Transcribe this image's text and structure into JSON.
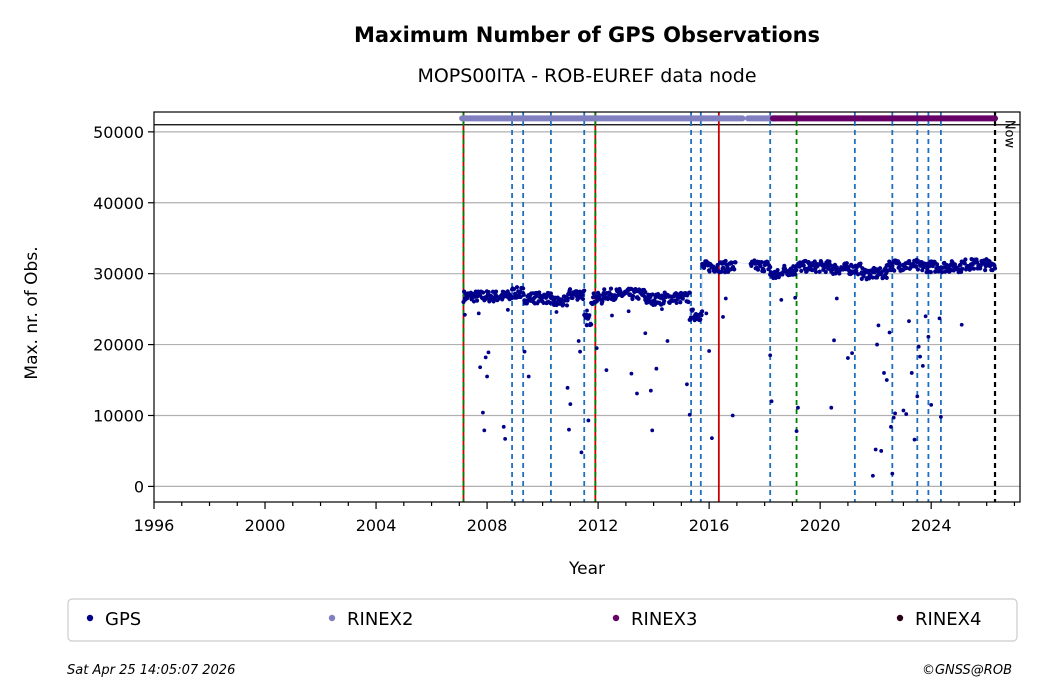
{
  "chart_data": {
    "type": "scatter",
    "title": "Maximum Number of GPS Observations",
    "subtitle": "MOPS00ITA - ROB-EUREF data node",
    "xlabel": "Year",
    "ylabel": "Max. nr. of Obs.",
    "xlim": [
      1996,
      2027.2
    ],
    "ylim": [
      -2200,
      52800
    ],
    "x_ticks": [
      1996,
      2000,
      2004,
      2008,
      2012,
      2016,
      2020,
      2024
    ],
    "y_ticks": [
      0,
      10000,
      20000,
      30000,
      40000,
      50000
    ],
    "y_tick_labels": [
      "0",
      "10000",
      "20000",
      "30000",
      "40000",
      "50000"
    ],
    "grid": "horizontal",
    "reference_line_y": 51000,
    "now_label": "Now",
    "now_year": 2026.32,
    "series": [
      {
        "name": "GPS",
        "color": "#00008b",
        "segments": [
          {
            "x0": 2007.15,
            "x1": 2008.9,
            "level": 26800
          },
          {
            "x0": 2008.9,
            "x1": 2009.3,
            "level": 27300
          },
          {
            "x0": 2009.3,
            "x1": 2010.3,
            "level": 26600
          },
          {
            "x0": 2010.3,
            "x1": 2010.9,
            "level": 26000
          },
          {
            "x0": 2010.9,
            "x1": 2011.5,
            "level": 27100
          },
          {
            "x0": 2011.5,
            "x1": 2011.75,
            "level": 23500
          },
          {
            "x0": 2011.75,
            "x1": 2012.2,
            "level": 26500
          },
          {
            "x0": 2012.2,
            "x1": 2013.7,
            "level": 27100
          },
          {
            "x0": 2013.7,
            "x1": 2014.4,
            "level": 26400
          },
          {
            "x0": 2014.4,
            "x1": 2015.3,
            "level": 26600
          },
          {
            "x0": 2015.3,
            "x1": 2015.75,
            "level": 24200
          },
          {
            "x0": 2015.75,
            "x1": 2016.95,
            "level": 31000
          },
          {
            "x0": 2017.5,
            "x1": 2018.2,
            "level": 31100
          },
          {
            "x0": 2018.2,
            "x1": 2018.6,
            "level": 29800
          },
          {
            "x0": 2018.6,
            "x1": 2019.1,
            "level": 30500
          },
          {
            "x0": 2019.1,
            "x1": 2020.4,
            "level": 31000
          },
          {
            "x0": 2020.4,
            "x1": 2021.5,
            "level": 30700
          },
          {
            "x0": 2021.5,
            "x1": 2022.4,
            "level": 30000
          },
          {
            "x0": 2022.4,
            "x1": 2023.5,
            "level": 31200
          },
          {
            "x0": 2023.5,
            "x1": 2025.1,
            "level": 31000
          },
          {
            "x0": 2025.1,
            "x1": 2026.3,
            "level": 31300
          }
        ],
        "outliers": [
          [
            2007.2,
            24200
          ],
          [
            2007.7,
            24400
          ],
          [
            2007.75,
            16800
          ],
          [
            2007.85,
            10400
          ],
          [
            2007.9,
            7900
          ],
          [
            2007.95,
            18200
          ],
          [
            2008.0,
            15500
          ],
          [
            2008.05,
            18900
          ],
          [
            2008.6,
            8400
          ],
          [
            2008.65,
            6700
          ],
          [
            2008.75,
            24900
          ],
          [
            2009.35,
            19000
          ],
          [
            2009.5,
            15500
          ],
          [
            2010.5,
            24600
          ],
          [
            2010.9,
            13900
          ],
          [
            2010.95,
            8000
          ],
          [
            2011.0,
            11600
          ],
          [
            2011.3,
            20500
          ],
          [
            2011.35,
            19000
          ],
          [
            2011.4,
            4800
          ],
          [
            2011.6,
            24800
          ],
          [
            2011.65,
            9300
          ],
          [
            2011.95,
            19500
          ],
          [
            2012.3,
            16400
          ],
          [
            2012.5,
            24100
          ],
          [
            2013.1,
            24700
          ],
          [
            2013.2,
            15900
          ],
          [
            2013.4,
            13100
          ],
          [
            2013.7,
            21600
          ],
          [
            2013.9,
            13500
          ],
          [
            2013.95,
            7900
          ],
          [
            2014.1,
            16600
          ],
          [
            2014.3,
            25000
          ],
          [
            2014.5,
            20500
          ],
          [
            2015.2,
            14400
          ],
          [
            2015.3,
            10100
          ],
          [
            2015.9,
            24400
          ],
          [
            2016.0,
            19100
          ],
          [
            2016.1,
            6800
          ],
          [
            2016.5,
            23900
          ],
          [
            2016.6,
            26500
          ],
          [
            2016.85,
            10000
          ],
          [
            2018.2,
            18500
          ],
          [
            2018.25,
            12000
          ],
          [
            2018.6,
            26300
          ],
          [
            2019.1,
            26600
          ],
          [
            2019.15,
            7800
          ],
          [
            2019.2,
            11100
          ],
          [
            2020.4,
            11100
          ],
          [
            2020.5,
            20600
          ],
          [
            2020.6,
            26500
          ],
          [
            2021.0,
            18100
          ],
          [
            2021.15,
            18800
          ],
          [
            2021.9,
            1500
          ],
          [
            2022.0,
            5200
          ],
          [
            2022.05,
            20000
          ],
          [
            2022.1,
            22700
          ],
          [
            2022.2,
            5000
          ],
          [
            2022.3,
            16000
          ],
          [
            2022.4,
            15000
          ],
          [
            2022.5,
            21700
          ],
          [
            2022.55,
            8400
          ],
          [
            2022.6,
            1800
          ],
          [
            2022.65,
            9700
          ],
          [
            2022.7,
            10300
          ],
          [
            2023.0,
            10700
          ],
          [
            2023.1,
            10200
          ],
          [
            2023.2,
            23300
          ],
          [
            2023.3,
            16000
          ],
          [
            2023.4,
            6600
          ],
          [
            2023.5,
            12700
          ],
          [
            2023.55,
            19700
          ],
          [
            2023.6,
            18300
          ],
          [
            2023.7,
            17000
          ],
          [
            2023.8,
            24000
          ],
          [
            2023.9,
            21100
          ],
          [
            2024.0,
            11500
          ],
          [
            2024.3,
            23700
          ],
          [
            2024.35,
            9800
          ],
          [
            2025.1,
            22800
          ]
        ]
      }
    ],
    "rinex_bars": [
      {
        "name": "RINEX2",
        "color": "#8080c0",
        "x0": 2007.1,
        "x1": 2017.2,
        "y": 51900
      },
      {
        "name": "RINEX2",
        "color": "#8080c0",
        "x0": 2017.4,
        "x1": 2018.4,
        "y": 51900
      },
      {
        "name": "RINEX3",
        "color": "#660066",
        "x0": 2018.3,
        "x1": 2026.3,
        "y": 51900
      }
    ],
    "vertical_lines": [
      {
        "x": 2007.15,
        "color": "#cc0000",
        "style": "solid"
      },
      {
        "x": 2007.15,
        "color": "#008000",
        "style": "dashed"
      },
      {
        "x": 2008.9,
        "color": "#1f6fbf",
        "style": "dashed"
      },
      {
        "x": 2009.3,
        "color": "#1f6fbf",
        "style": "dashed"
      },
      {
        "x": 2010.3,
        "color": "#1f6fbf",
        "style": "dashed"
      },
      {
        "x": 2011.5,
        "color": "#1f6fbf",
        "style": "dashed"
      },
      {
        "x": 2011.9,
        "color": "#cc0000",
        "style": "solid"
      },
      {
        "x": 2011.9,
        "color": "#008000",
        "style": "dashed"
      },
      {
        "x": 2015.35,
        "color": "#1f6fbf",
        "style": "dashed"
      },
      {
        "x": 2015.7,
        "color": "#1f6fbf",
        "style": "dashed"
      },
      {
        "x": 2016.35,
        "color": "#cc0000",
        "style": "solid"
      },
      {
        "x": 2018.2,
        "color": "#1f6fbf",
        "style": "dashed"
      },
      {
        "x": 2019.15,
        "color": "#008000",
        "style": "dashed"
      },
      {
        "x": 2021.25,
        "color": "#1f6fbf",
        "style": "dashed"
      },
      {
        "x": 2022.6,
        "color": "#1f6fbf",
        "style": "dashed"
      },
      {
        "x": 2023.5,
        "color": "#1f6fbf",
        "style": "dashed"
      },
      {
        "x": 2023.9,
        "color": "#1f6fbf",
        "style": "dashed"
      },
      {
        "x": 2024.35,
        "color": "#1f6fbf",
        "style": "dashed"
      },
      {
        "x": 2026.3,
        "color": "#000000",
        "style": "dashed"
      }
    ]
  },
  "legend": [
    {
      "label": "GPS",
      "color": "#00008b"
    },
    {
      "label": "RINEX2",
      "color": "#8080c0"
    },
    {
      "label": "RINEX3",
      "color": "#660066"
    },
    {
      "label": "RINEX4",
      "color": "#2a0018"
    }
  ],
  "footer": {
    "timestamp": "Sat Apr 25 14:05:07 2026",
    "copyright": "©GNSS@ROB"
  }
}
